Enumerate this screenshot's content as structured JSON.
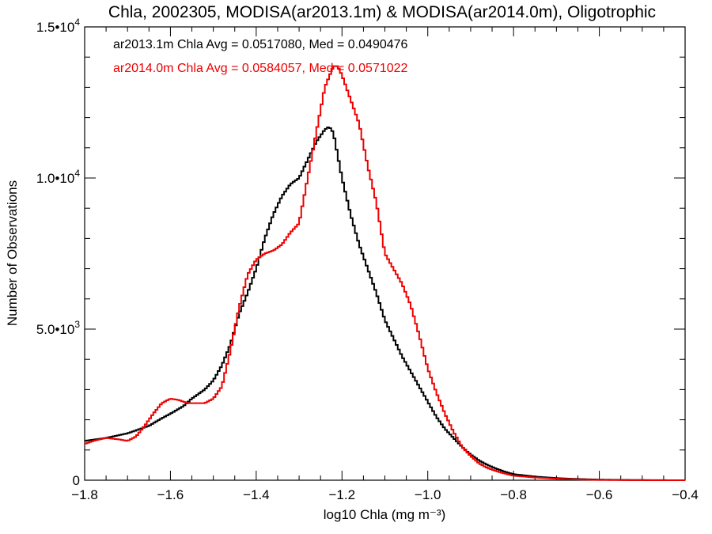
{
  "chart_data": {
    "type": "line",
    "title": "Chla, 2002305, MODISA(ar2013.1m) & MODISA(ar2014.0m), Oligotrophic",
    "xlabel": "log10 Chla (mg m⁻³)",
    "ylabel": "Number of Observations",
    "xlim": [
      -1.8,
      -0.4
    ],
    "ylim": [
      0,
      15000
    ],
    "x_ticks": [
      {
        "value": -1.8,
        "label": "−1.8"
      },
      {
        "value": -1.6,
        "label": "−1.6"
      },
      {
        "value": -1.4,
        "label": "−1.4"
      },
      {
        "value": -1.2,
        "label": "−1.2"
      },
      {
        "value": -1.0,
        "label": "−1.0"
      },
      {
        "value": -0.8,
        "label": "−0.8"
      },
      {
        "value": -0.6,
        "label": "−0.6"
      },
      {
        "value": -0.4,
        "label": "−0.4"
      }
    ],
    "y_ticks": [
      {
        "value": 0,
        "mantissa": "0",
        "exp": ""
      },
      {
        "value": 5000,
        "mantissa": "5.0•10",
        "exp": "3"
      },
      {
        "value": 10000,
        "mantissa": "1.0•10",
        "exp": "4"
      },
      {
        "value": 15000,
        "mantissa": "1.5•10",
        "exp": "4"
      }
    ],
    "series": [
      {
        "name": "ar2013.1m",
        "legend": "ar2013.1m Chla Avg = 0.0517080, Med = 0.0490476",
        "color": "#000000",
        "x": [
          -1.8,
          -1.75,
          -1.7,
          -1.65,
          -1.62,
          -1.6,
          -1.57,
          -1.55,
          -1.52,
          -1.5,
          -1.48,
          -1.46,
          -1.44,
          -1.42,
          -1.4,
          -1.38,
          -1.36,
          -1.34,
          -1.32,
          -1.3,
          -1.28,
          -1.26,
          -1.24,
          -1.23,
          -1.22,
          -1.2,
          -1.18,
          -1.16,
          -1.14,
          -1.12,
          -1.1,
          -1.08,
          -1.06,
          -1.04,
          -1.02,
          -1.0,
          -0.98,
          -0.96,
          -0.94,
          -0.92,
          -0.9,
          -0.88,
          -0.86,
          -0.84,
          -0.82,
          -0.8,
          -0.75,
          -0.7,
          -0.65,
          -0.6,
          -0.55,
          -0.5,
          -0.45,
          -0.4
        ],
        "y": [
          1300,
          1400,
          1550,
          1800,
          2050,
          2200,
          2450,
          2700,
          3000,
          3300,
          3800,
          4500,
          5500,
          6200,
          7000,
          8000,
          8800,
          9400,
          9800,
          10000,
          10600,
          11200,
          11600,
          11700,
          11500,
          10000,
          8800,
          7800,
          7000,
          6200,
          5300,
          4700,
          4100,
          3600,
          3100,
          2600,
          2100,
          1700,
          1400,
          1100,
          850,
          650,
          500,
          380,
          280,
          200,
          120,
          70,
          40,
          20,
          10,
          5,
          2,
          0
        ]
      },
      {
        "name": "ar2014.0m",
        "legend": "ar2014.0m Chla Avg = 0.0584057, Med = 0.0571022",
        "color": "#ee0000",
        "x": [
          -1.8,
          -1.78,
          -1.75,
          -1.72,
          -1.7,
          -1.68,
          -1.66,
          -1.64,
          -1.62,
          -1.6,
          -1.58,
          -1.56,
          -1.54,
          -1.52,
          -1.5,
          -1.48,
          -1.46,
          -1.44,
          -1.42,
          -1.4,
          -1.38,
          -1.36,
          -1.34,
          -1.32,
          -1.3,
          -1.28,
          -1.26,
          -1.24,
          -1.22,
          -1.21,
          -1.2,
          -1.18,
          -1.16,
          -1.14,
          -1.12,
          -1.1,
          -1.08,
          -1.06,
          -1.04,
          -1.02,
          -1.0,
          -0.98,
          -0.96,
          -0.94,
          -0.92,
          -0.9,
          -0.88,
          -0.86,
          -0.84,
          -0.82,
          -0.8,
          -0.75,
          -0.7,
          -0.65,
          -0.6,
          -0.55,
          -0.5,
          -0.45,
          -0.4
        ],
        "y": [
          1200,
          1300,
          1400,
          1350,
          1300,
          1450,
          1800,
          2200,
          2550,
          2700,
          2650,
          2550,
          2550,
          2550,
          2700,
          3100,
          4300,
          5700,
          6800,
          7300,
          7500,
          7600,
          7800,
          8200,
          8500,
          10000,
          11500,
          13000,
          13700,
          13700,
          13400,
          12600,
          11800,
          10400,
          9200,
          7500,
          7000,
          6500,
          5800,
          4800,
          3700,
          2900,
          2200,
          1600,
          1100,
          800,
          550,
          400,
          300,
          220,
          150,
          90,
          50,
          25,
          10,
          5,
          2,
          1,
          0
        ]
      }
    ],
    "grid": false,
    "legend_position": "top-left"
  }
}
